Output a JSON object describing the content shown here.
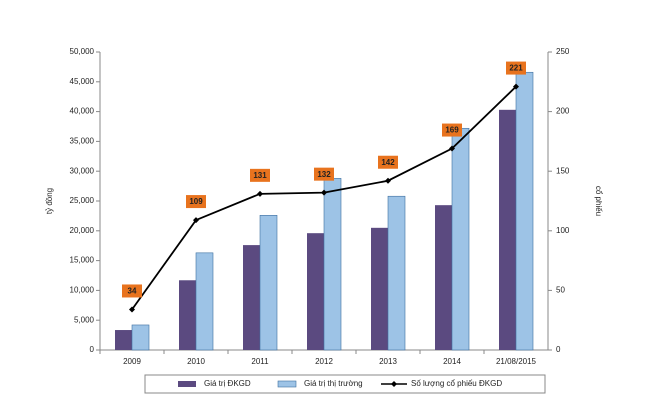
{
  "chart_data": {
    "type": "bar-line",
    "categories": [
      "2009",
      "2010",
      "2011",
      "2012",
      "2013",
      "2014",
      "21/08/2015"
    ],
    "ylabel": "tỷ đồng",
    "y2label": "cổ phiếu",
    "ylim": [
      0,
      50000
    ],
    "yticks": [
      0,
      {
        "value": 5000,
        "label": "5,000"
      },
      {
        "value": 10000,
        "label": "10,000"
      },
      {
        "value": 15000,
        "label": "15,000"
      },
      {
        "value": 20000,
        "label": "20,000"
      },
      {
        "value": 25000,
        "label": "25,000"
      },
      {
        "value": 30000,
        "label": "30,000"
      },
      {
        "value": 35000,
        "label": "35,000"
      },
      {
        "value": 40000,
        "label": "40,000"
      },
      {
        "value": 45000,
        "label": "45,000"
      },
      {
        "value": 50000,
        "label": "50,000"
      }
    ],
    "y2lim": [
      0,
      250
    ],
    "y2ticks": [
      0,
      50,
      100,
      150,
      200,
      250
    ],
    "legend": "bottom",
    "series": [
      {
        "name": "Giá trị ĐKGD",
        "color": "#5b4a80",
        "type": "bar",
        "values": [
          3350,
          11700,
          17600,
          19600,
          20500,
          24300,
          40300
        ]
      },
      {
        "name": "Giá trị thị trường",
        "color": "#9dc3e6",
        "type": "bar",
        "values": [
          4200,
          16300,
          22600,
          28800,
          25800,
          37200,
          46600
        ]
      },
      {
        "name": "Số lượng cổ phiếu ĐKGD",
        "color": "#000000",
        "type": "line",
        "axis": "y2",
        "values": [
          34,
          109,
          131,
          132,
          142,
          169,
          221
        ]
      }
    ]
  }
}
